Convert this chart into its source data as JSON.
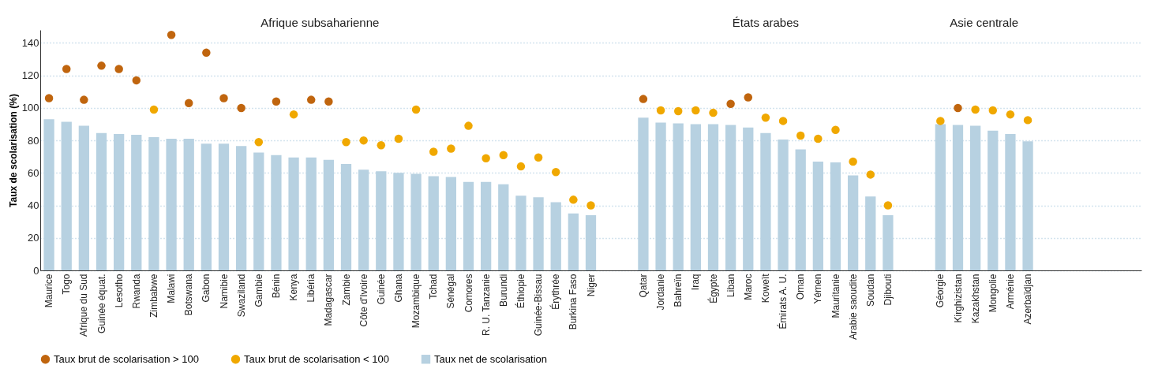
{
  "chart_data": {
    "type": "bar",
    "ylabel": "Taux de scolarisation (%)",
    "categories": [
      "Maurice",
      "Togo",
      "Afrique du Sud",
      "Guinée équat.",
      "Lesotho",
      "Rwanda",
      "Zimbabwe",
      "Malawi",
      "Botswana",
      "Gabon",
      "Namibie",
      "Swaziland",
      "Gambie",
      "Bénin",
      "Kenya",
      "Libéria",
      "Madagascar",
      "Zambie",
      "Côte d'Ivoire",
      "Guinée",
      "Ghana",
      "Mozambique",
      "Tchad",
      "Sénégal",
      "Comores",
      "R. U. Tanzanie",
      "Burundi",
      "Éthiopie",
      "Guinée-Bissau",
      "Érythrée",
      "Burkina Faso",
      "Niger",
      null,
      null,
      "Qatar",
      "Jordanie",
      "Bahreïn",
      "Iraq",
      "Égypte",
      "Liban",
      "Maroc",
      "Koweït",
      "Émirats A. U.",
      "Oman",
      "Yémen",
      "Mauritanie",
      "Arabie saoudite",
      "Soudan",
      "Djibouti",
      null,
      null,
      "Géorgie",
      "Kirghizistan",
      "Kazakhstan",
      "Mongolie",
      "Arménie",
      "Azerbaïdjan",
      null,
      null,
      null,
      null,
      null,
      null
    ],
    "series": [
      {
        "name": "Taux brut de scolarisation > 100",
        "type": "scatter",
        "color": "#c0650e",
        "values": [
          106,
          124,
          105,
          126,
          124,
          117,
          null,
          145,
          103,
          134,
          106,
          100,
          null,
          104,
          null,
          105,
          104,
          null,
          null,
          null,
          null,
          null,
          null,
          null,
          null,
          null,
          null,
          null,
          null,
          null,
          null,
          null,
          null,
          null,
          105.5,
          null,
          null,
          null,
          null,
          102.5,
          106.5,
          null,
          null,
          null,
          null,
          null,
          null,
          null,
          null,
          null,
          null,
          null,
          100,
          null,
          null,
          null,
          null,
          null,
          null,
          null,
          null,
          null,
          null
        ]
      },
      {
        "name": "Taux brut de scolarisation < 100",
        "type": "scatter",
        "color": "#f0a800",
        "values": [
          null,
          null,
          null,
          null,
          null,
          null,
          99,
          null,
          null,
          null,
          null,
          null,
          79,
          null,
          96,
          null,
          null,
          79,
          80,
          77,
          81,
          99,
          73,
          75,
          89,
          69,
          71,
          64,
          69.5,
          60.5,
          43.5,
          40,
          null,
          null,
          null,
          98.5,
          98,
          98.5,
          97,
          null,
          null,
          94,
          92,
          83,
          81,
          86.5,
          67,
          59,
          40,
          null,
          null,
          92,
          null,
          99,
          98.5,
          96,
          92.5,
          null,
          null,
          null,
          null,
          null,
          null
        ]
      },
      {
        "name": "Taux net de scolarisation",
        "color": "#b7d1e1",
        "values": [
          93,
          91.5,
          89,
          84.5,
          84,
          83.5,
          82,
          81,
          81,
          78,
          78,
          76.5,
          72.5,
          71,
          69.5,
          69.5,
          68,
          65.5,
          62,
          61,
          60,
          59.5,
          58,
          57.5,
          54.5,
          54.5,
          53,
          46,
          45,
          42,
          35,
          34,
          null,
          null,
          94,
          91,
          90.5,
          90,
          90,
          89.5,
          88,
          84.5,
          80.5,
          74.5,
          67,
          66.5,
          58.5,
          45.5,
          34,
          null,
          null,
          90,
          89.5,
          89,
          86,
          84,
          79.5,
          null,
          null,
          null,
          null,
          null,
          null
        ]
      }
    ],
    "ylim": [
      0,
      148
    ],
    "yticks": [
      0,
      20,
      40,
      60,
      80,
      100,
      120,
      140
    ],
    "grid": "y",
    "legend": "bottom",
    "marker": "circle",
    "annotations": [
      "Afrique subsaharienne",
      "États arabes",
      "Asie centrale"
    ]
  }
}
